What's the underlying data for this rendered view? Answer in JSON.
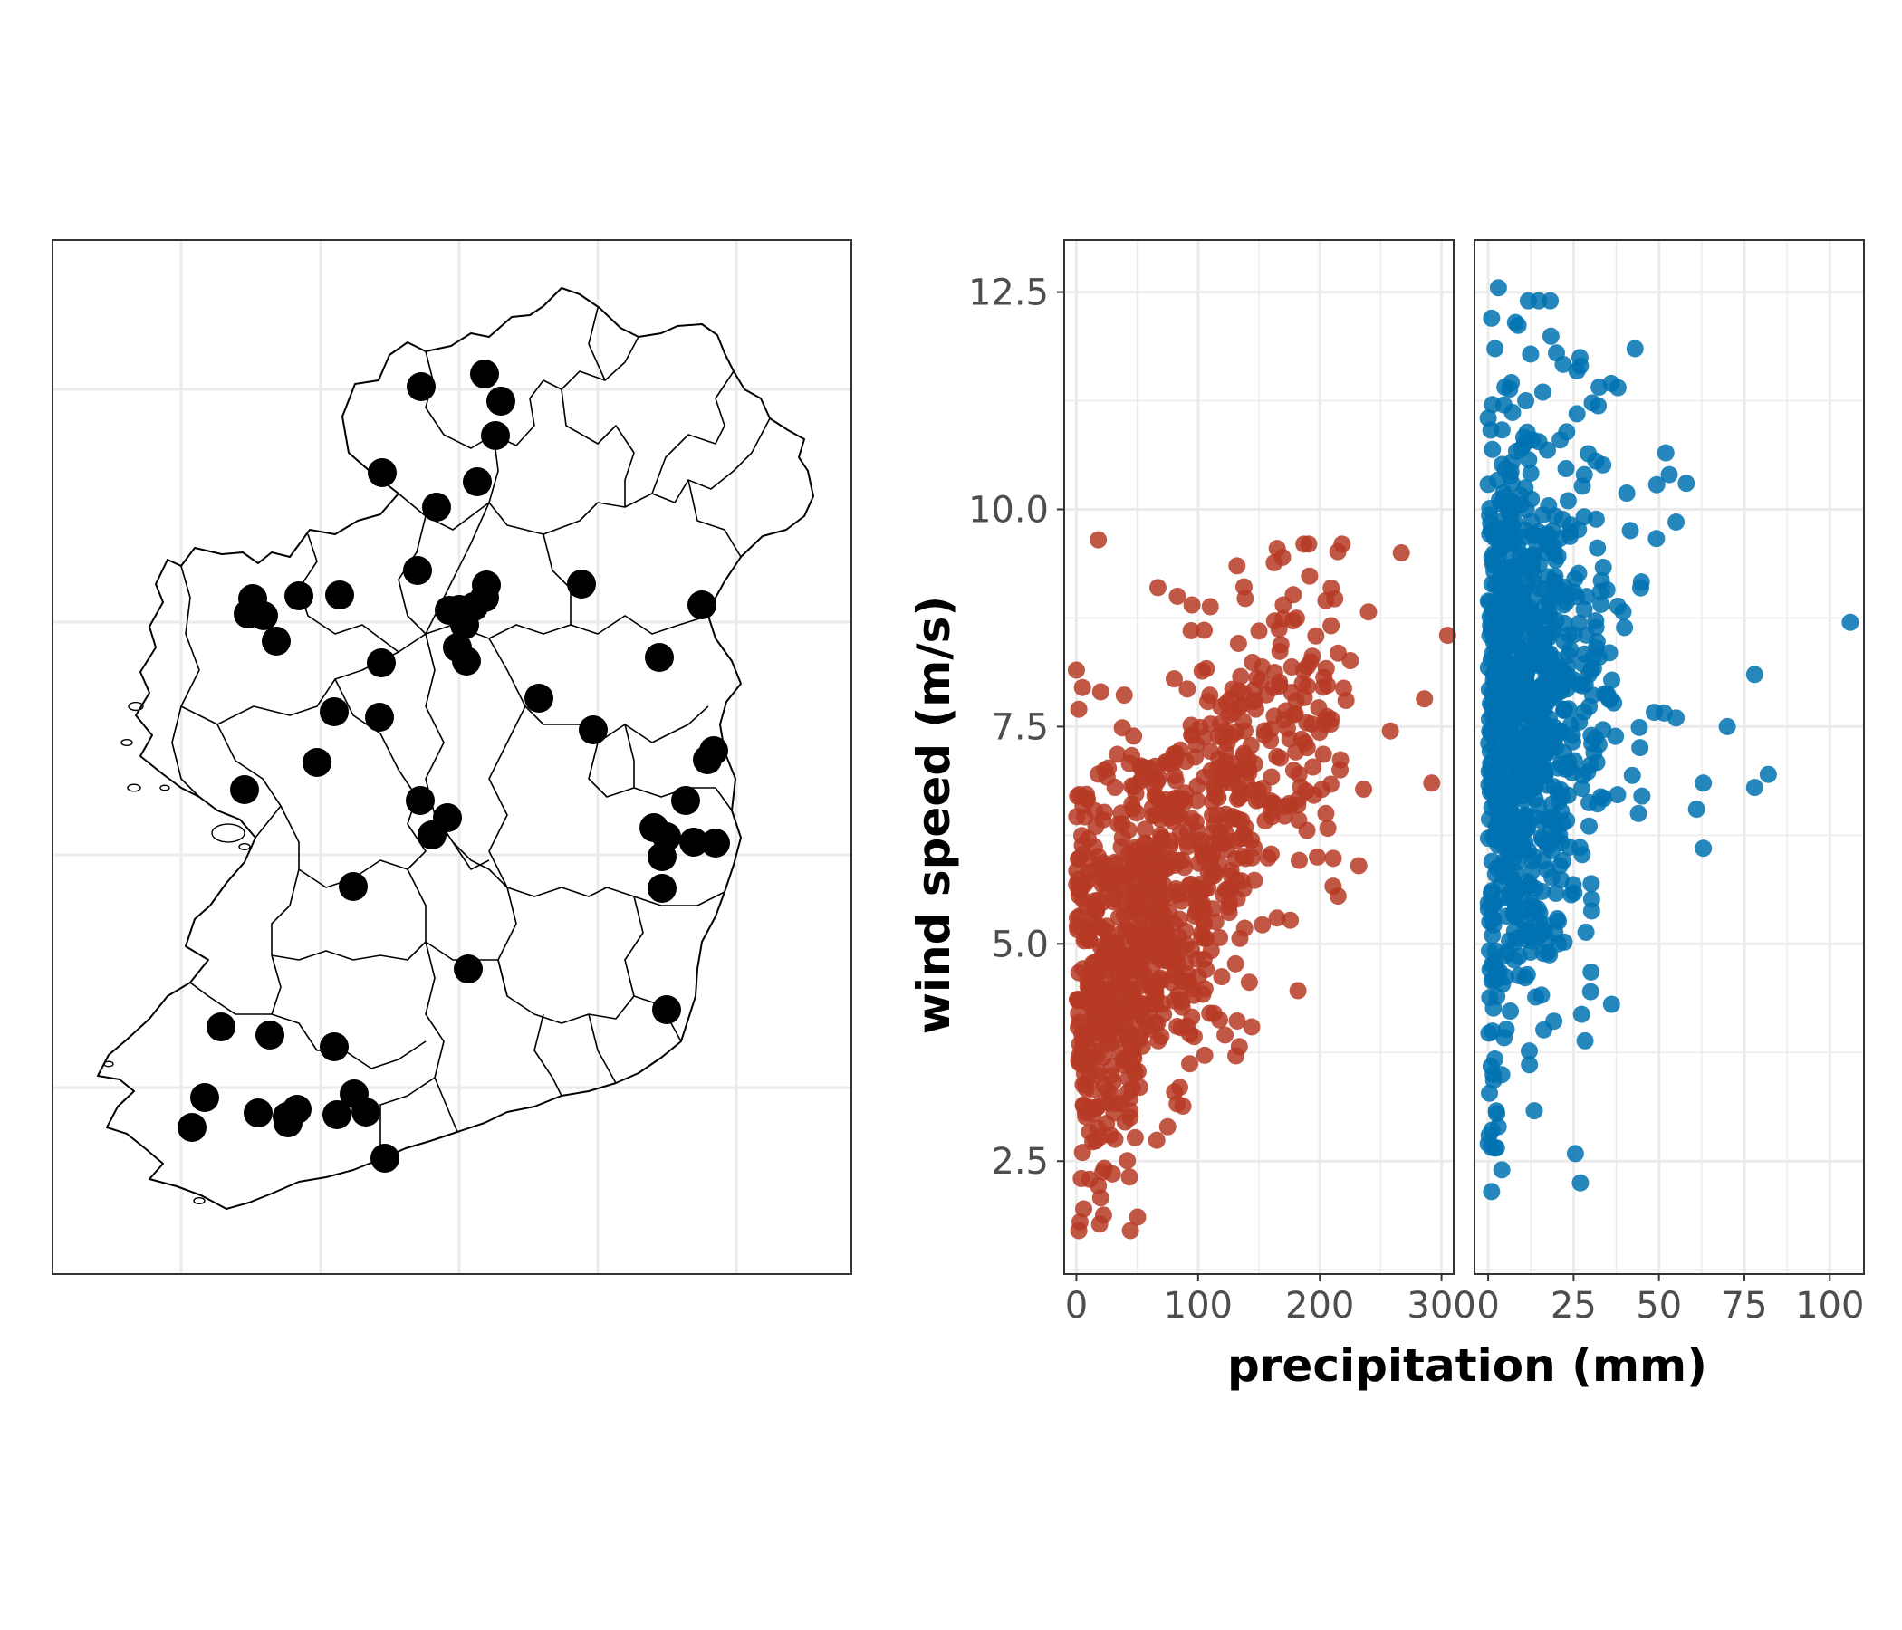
{
  "colors": {
    "station_fill": "#000000",
    "panel_left_points": "#B63A25",
    "panel_right_points": "#0072B2",
    "grid": "#ebebeb",
    "panel_border": "#333333",
    "tick_text": "#4d4d4d"
  },
  "chart_data": [
    {
      "type": "scatter",
      "description_kind": "map",
      "title": "",
      "grid": true,
      "map_outline": "island-with-county-boundaries",
      "station_count": 60
    },
    {
      "type": "scatter",
      "title": "",
      "xlabel": "precipitation (mm)",
      "ylabel": "wind speed (m/s)",
      "grid": true,
      "legend": "none",
      "facets": [
        {
          "name": "",
          "color": "#B63A25",
          "xlim": [
            -10,
            310
          ],
          "ylim": [
            1.2,
            13.1
          ],
          "xticks": [
            0,
            100,
            200,
            300
          ],
          "xtick_labels": [
            "0",
            "100",
            "200",
            "300"
          ],
          "n_points": 1000,
          "mean_relation": "wind ≈ 4.0 + 0.018·precip (clipped)",
          "sample_points": [
            [
              18,
              9.65
            ],
            [
              67,
              9.1
            ],
            [
              83,
              9.0
            ],
            [
              95,
              8.9
            ],
            [
              110,
              8.88
            ],
            [
              132,
              9.35
            ],
            [
              165,
              9.55
            ],
            [
              267,
              9.5
            ],
            [
              305,
              8.55
            ],
            [
              240,
              8.82
            ],
            [
              205,
              8.95
            ],
            [
              170,
              8.9
            ],
            [
              150,
              8.6
            ],
            [
              286,
              7.82
            ],
            [
              258,
              7.45
            ],
            [
              292,
              6.85
            ],
            [
              205,
              6.5
            ],
            [
              236,
              6.78
            ],
            [
              198,
              6.0
            ],
            [
              232,
              5.9
            ],
            [
              215,
              5.55
            ],
            [
              113,
              4.2
            ],
            [
              52,
              3.35
            ],
            [
              40,
              2.95
            ],
            [
              28,
              2.8
            ],
            [
              5,
              2.6
            ],
            [
              4,
              2.3
            ],
            [
              6,
              1.95
            ],
            [
              2,
              1.7
            ],
            [
              3,
              1.8
            ],
            [
              0,
              8.15
            ],
            [
              5,
              7.95
            ],
            [
              20,
              7.9
            ],
            [
              2,
              7.7
            ],
            [
              1,
              6.7
            ]
          ]
        },
        {
          "name": "",
          "color": "#0072B2",
          "xlim": [
            -4,
            110
          ],
          "ylim": [
            1.2,
            13.1
          ],
          "xticks": [
            0,
            25,
            50,
            75,
            100
          ],
          "xtick_labels": [
            "0",
            "25",
            "50",
            "75",
            "100"
          ],
          "n_points": 1000,
          "sample_points": [
            [
              3,
              12.55
            ],
            [
              1,
              12.2
            ],
            [
              8,
              12.15
            ],
            [
              2,
              11.85
            ],
            [
              20,
              11.8
            ],
            [
              43,
              11.85
            ],
            [
              27,
              11.65
            ],
            [
              36,
              11.45
            ],
            [
              38,
              11.4
            ],
            [
              16,
              11.35
            ],
            [
              11,
              11.25
            ],
            [
              26,
              11.1
            ],
            [
              0,
              11.05
            ],
            [
              52,
              10.65
            ],
            [
              53,
              10.4
            ],
            [
              58,
              10.3
            ],
            [
              106,
              8.7
            ],
            [
              55,
              7.6
            ],
            [
              78,
              8.1
            ],
            [
              70,
              7.5
            ],
            [
              82,
              6.95
            ],
            [
              78,
              6.8
            ],
            [
              63,
              6.85
            ],
            [
              61,
              6.55
            ],
            [
              63,
              6.1
            ],
            [
              45,
              6.7
            ],
            [
              44,
              6.5
            ],
            [
              30,
              4.45
            ],
            [
              27,
              2.25
            ],
            [
              1,
              2.15
            ],
            [
              4,
              2.4
            ],
            [
              0,
              2.7
            ],
            [
              2,
              2.65
            ]
          ]
        }
      ],
      "y_axis": {
        "ticks": [
          2.5,
          5.0,
          7.5,
          10.0,
          12.5
        ],
        "tick_labels": [
          "2.5",
          "5.0",
          "7.5",
          "10.0",
          "12.5"
        ]
      }
    }
  ]
}
